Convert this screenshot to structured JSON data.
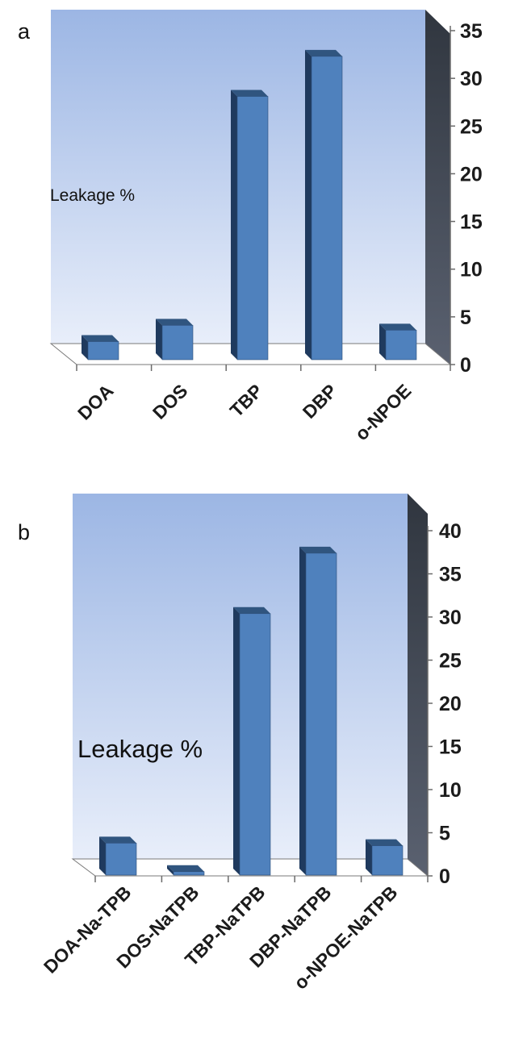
{
  "chart_data": [
    {
      "type": "bar",
      "panel": "a",
      "categories": [
        "DOA",
        "DOS",
        "TBP",
        "DBP",
        "o-NPOE"
      ],
      "values": [
        1.9,
        3.6,
        27.6,
        31.8,
        3.1
      ],
      "ylabel": "Leakage %",
      "ylim": [
        0,
        35
      ],
      "yticks": [
        0,
        5,
        10,
        15,
        20,
        25,
        30,
        35
      ],
      "axis_side": "right",
      "three_d": true,
      "colors": {
        "bar_face": "#4f81bd",
        "bar_top": "#30557f",
        "bar_side": "#1f3a5e",
        "wall_top": "#9cb6e4",
        "wall_bottom": "#e8eefa",
        "side_wall": "#3a4150"
      }
    },
    {
      "type": "bar",
      "panel": "b",
      "categories": [
        "DOA-Na-TPB",
        "DOS-NaTPB",
        "TBP-NaTPB",
        "DBP-NaTPB",
        "o-NPOE-NaTPB"
      ],
      "values": [
        3.7,
        0.4,
        30.3,
        37.3,
        3.4
      ],
      "ylabel": "Leakage %",
      "ylim": [
        0,
        40
      ],
      "yticks": [
        0,
        5,
        10,
        15,
        20,
        25,
        30,
        35,
        40
      ],
      "axis_side": "right",
      "three_d": true,
      "colors": {
        "bar_face": "#4f81bd",
        "bar_top": "#30557f",
        "bar_side": "#1f3a5e",
        "wall_top": "#9cb6e4",
        "wall_bottom": "#e8eefa",
        "side_wall": "#3a4150"
      }
    }
  ]
}
